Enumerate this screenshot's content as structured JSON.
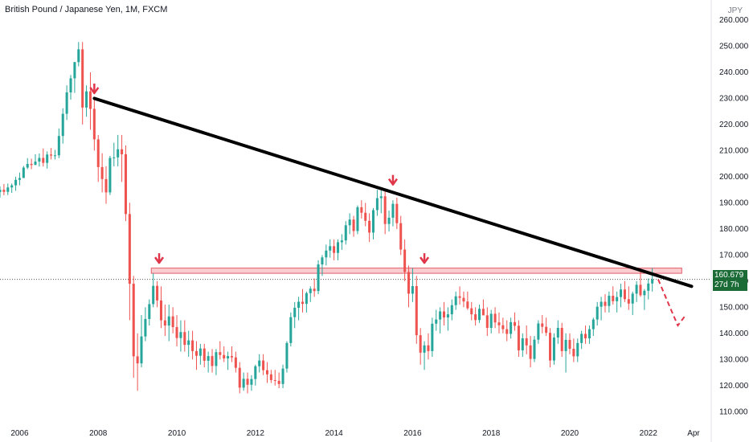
{
  "title": "British Pound / Japanese Yen, 1M, FXCM",
  "currency": "JPY",
  "last_price": "160.679",
  "countdown": "27d 7h",
  "colors": {
    "up": "#26a69a",
    "down": "#ef5350",
    "trend": "#000000",
    "zone": "#f4a3a8",
    "arrow": "#e0364a",
    "tag": "#1b6b36"
  },
  "chart_data": {
    "type": "candlestick",
    "x_ticks": [
      "2006",
      "2008",
      "2010",
      "2012",
      "2014",
      "2016",
      "2018",
      "2020",
      "2022",
      "Apr"
    ],
    "y_ticks": [
      "110.000",
      "120.000",
      "130.000",
      "140.000",
      "150.000",
      "160.000",
      "170.000",
      "180.000",
      "190.000",
      "200.000",
      "210.000",
      "220.000",
      "230.000",
      "240.000",
      "250.000",
      "260.000"
    ],
    "ylim": [
      107,
      264
    ],
    "xlim": [
      2005.5,
      2023.6
    ],
    "trendline": {
      "from": [
        2007.9,
        230
      ],
      "to": [
        2023.1,
        158
      ]
    },
    "resistance_zone": {
      "x_start": 2009.35,
      "x_end": 2022.85,
      "low": 163,
      "high": 165
    },
    "arrows": [
      [
        2007.9,
        232
      ],
      [
        2009.55,
        167
      ],
      [
        2015.5,
        197
      ],
      [
        2016.3,
        167
      ]
    ],
    "projection": [
      [
        2022.25,
        160.679
      ],
      [
        2022.55,
        150
      ],
      [
        2022.75,
        143
      ],
      [
        2022.95,
        147
      ]
    ],
    "ohlc": [
      [
        2005.5,
        194.1,
        196.3,
        192,
        195
      ],
      [
        2005.6,
        195,
        197.2,
        192.9,
        194.2
      ],
      [
        2005.7,
        194.2,
        197.4,
        193,
        195.9
      ],
      [
        2005.8,
        195.9,
        197.4,
        193.8,
        196.7
      ],
      [
        2005.9,
        196.7,
        200,
        194.6,
        198.8
      ],
      [
        2006.0,
        198.8,
        201.6,
        196.7,
        199.5
      ],
      [
        2006.1,
        199.5,
        204.1,
        199.5,
        203.5
      ],
      [
        2006.2,
        203.5,
        207.1,
        202.9,
        204.9
      ],
      [
        2006.3,
        204.9,
        206.9,
        202.9,
        204.5
      ],
      [
        2006.4,
        204.5,
        208.6,
        204.5,
        205.8
      ],
      [
        2006.5,
        205.8,
        208.9,
        203.9,
        207.2
      ],
      [
        2006.6,
        207.2,
        210.8,
        203.9,
        205.3
      ],
      [
        2006.7,
        205.3,
        209.7,
        203.1,
        208.5
      ],
      [
        2006.8,
        208.5,
        211,
        206.6,
        208.1
      ],
      [
        2006.9,
        208.1,
        210.3,
        206.6,
        208.2
      ],
      [
        2007.0,
        208.2,
        218.5,
        207.1,
        215.6
      ],
      [
        2007.1,
        215.6,
        226.2,
        212.7,
        224.1
      ],
      [
        2007.2,
        224.1,
        235,
        221.7,
        232.3
      ],
      [
        2007.3,
        232.3,
        239,
        229.5,
        237.7
      ],
      [
        2007.4,
        237.7,
        244,
        232.1,
        243.9
      ],
      [
        2007.5,
        243.9,
        251.6,
        242.3,
        248.8
      ],
      [
        2007.6,
        248.8,
        251.6,
        220,
        226.5
      ],
      [
        2007.7,
        226.5,
        235,
        223,
        232.7
      ],
      [
        2007.8,
        232.7,
        240,
        218,
        226
      ],
      [
        2007.9,
        226,
        230,
        210,
        214.3
      ],
      [
        2008.0,
        214.3,
        216,
        198,
        203.7
      ],
      [
        2008.1,
        203.7,
        209,
        194,
        199.1
      ],
      [
        2008.2,
        199.1,
        204,
        189.6,
        194
      ],
      [
        2008.3,
        194,
        208,
        193,
        207.2
      ],
      [
        2008.4,
        207.2,
        213,
        204,
        207.4
      ],
      [
        2008.5,
        207.4,
        216,
        204,
        210.5
      ],
      [
        2008.6,
        210.5,
        216,
        198,
        208.6
      ],
      [
        2008.7,
        208.6,
        212,
        183,
        185.7
      ],
      [
        2008.8,
        185.7,
        190,
        145,
        159
      ],
      [
        2008.9,
        159,
        162,
        123,
        131.2
      ],
      [
        2009.0,
        131.2,
        140,
        118,
        128.5
      ],
      [
        2009.1,
        128.5,
        147,
        127,
        138.8
      ],
      [
        2009.2,
        138.8,
        150,
        137,
        145.5
      ],
      [
        2009.3,
        145.5,
        153,
        143,
        151.2
      ],
      [
        2009.4,
        151.2,
        163,
        150,
        158.2
      ],
      [
        2009.5,
        158.2,
        160,
        150,
        152.6
      ],
      [
        2009.6,
        152.6,
        158,
        142,
        145
      ],
      [
        2009.7,
        145,
        151,
        139,
        143
      ],
      [
        2009.8,
        143,
        151,
        137,
        146.5
      ],
      [
        2009.9,
        146.5,
        150,
        140,
        142.4
      ],
      [
        2010.0,
        142.4,
        147,
        135,
        138.2
      ],
      [
        2010.1,
        138.2,
        145,
        133,
        140.5
      ],
      [
        2010.2,
        140.5,
        145,
        133,
        135.6
      ],
      [
        2010.3,
        135.6,
        141,
        131,
        137.3
      ],
      [
        2010.4,
        137.3,
        141,
        130,
        133.2
      ],
      [
        2010.5,
        133.2,
        137,
        126,
        131.4
      ],
      [
        2010.6,
        131.4,
        136,
        128,
        134.2
      ],
      [
        2010.7,
        134.2,
        136,
        127,
        129.5
      ],
      [
        2010.8,
        129.5,
        133,
        125,
        131.3
      ],
      [
        2010.9,
        131.3,
        134,
        125,
        127.5
      ],
      [
        2011.0,
        127.5,
        134,
        124,
        132.8
      ],
      [
        2011.1,
        132.8,
        137,
        130,
        131.7
      ],
      [
        2011.2,
        131.7,
        135,
        129,
        130.4
      ],
      [
        2011.3,
        130.4,
        133,
        126,
        131.3
      ],
      [
        2011.4,
        131.3,
        135,
        129,
        130.8
      ],
      [
        2011.5,
        130.8,
        133,
        125,
        126.8
      ],
      [
        2011.6,
        126.8,
        129,
        117,
        119.2
      ],
      [
        2011.7,
        119.2,
        125,
        118,
        122.6
      ],
      [
        2011.8,
        122.6,
        125,
        117,
        120.3
      ],
      [
        2011.9,
        120.3,
        124,
        118,
        122.5
      ],
      [
        2012.0,
        122.5,
        128,
        120,
        127.4
      ],
      [
        2012.1,
        127.4,
        132,
        125,
        129.6
      ],
      [
        2012.2,
        129.6,
        132,
        124,
        125.9
      ],
      [
        2012.3,
        125.9,
        129,
        121,
        124.3
      ],
      [
        2012.4,
        124.3,
        126,
        121,
        122.1
      ],
      [
        2012.5,
        122.1,
        126,
        120,
        121.8
      ],
      [
        2012.6,
        121.8,
        125,
        119,
        120.6
      ],
      [
        2012.7,
        120.6,
        128,
        119,
        126.5
      ],
      [
        2012.8,
        126.5,
        137,
        125,
        136.3
      ],
      [
        2012.9,
        136.3,
        148,
        135,
        146.2
      ],
      [
        2013.0,
        146.2,
        152,
        142,
        149.8
      ],
      [
        2013.1,
        149.8,
        154,
        145,
        152.1
      ],
      [
        2013.2,
        152.1,
        157,
        148,
        151.3
      ],
      [
        2013.3,
        151.3,
        156,
        148,
        155.4
      ],
      [
        2013.4,
        155.4,
        158,
        152,
        157.1
      ],
      [
        2013.5,
        157.1,
        161,
        154,
        156.2
      ],
      [
        2013.6,
        156.2,
        168,
        155,
        166.4
      ],
      [
        2013.7,
        166.4,
        170,
        162,
        169.1
      ],
      [
        2013.8,
        169.1,
        174,
        166,
        171.7
      ],
      [
        2013.9,
        171.7,
        176,
        169,
        173.4
      ],
      [
        2014.0,
        173.4,
        176,
        168,
        170.8
      ],
      [
        2014.1,
        170.8,
        176,
        168,
        174.9
      ],
      [
        2014.2,
        174.9,
        178,
        172,
        175.6
      ],
      [
        2014.3,
        175.6,
        183,
        174,
        181.4
      ],
      [
        2014.4,
        181.4,
        186,
        178,
        183.6
      ],
      [
        2014.5,
        183.6,
        185,
        177,
        179.2
      ],
      [
        2014.6,
        179.2,
        189,
        178,
        188.3
      ],
      [
        2014.7,
        188.3,
        191,
        184,
        186.2
      ],
      [
        2014.8,
        186.2,
        190,
        181,
        183.1
      ],
      [
        2014.9,
        183.1,
        186,
        175,
        178.6
      ],
      [
        2015.0,
        178.6,
        188,
        176,
        187.2
      ],
      [
        2015.1,
        187.2,
        195,
        185,
        191.8
      ],
      [
        2015.2,
        191.8,
        196,
        186,
        192.5
      ],
      [
        2015.3,
        192.5,
        195,
        178,
        181.9
      ],
      [
        2015.4,
        181.9,
        187,
        179,
        184.3
      ],
      [
        2015.5,
        184.3,
        191,
        181,
        189.6
      ],
      [
        2015.6,
        189.6,
        192,
        180,
        182.2
      ],
      [
        2015.7,
        182.2,
        185,
        170,
        172.1
      ],
      [
        2015.8,
        172.1,
        176,
        160,
        163.5
      ],
      [
        2015.9,
        163.5,
        166,
        150,
        155.2
      ],
      [
        2016.0,
        155.2,
        165,
        152,
        158.1
      ],
      [
        2016.1,
        158.1,
        162,
        136,
        139.3
      ],
      [
        2016.2,
        139.3,
        142,
        128,
        132.6
      ],
      [
        2016.3,
        132.6,
        137,
        126,
        135.4
      ],
      [
        2016.4,
        135.4,
        140,
        130,
        133.2
      ],
      [
        2016.5,
        133.2,
        146,
        131,
        143.7
      ],
      [
        2016.6,
        143.7,
        149,
        141,
        145.3
      ],
      [
        2016.7,
        145.3,
        150,
        140,
        148.4
      ],
      [
        2016.8,
        148.4,
        152,
        143,
        146.1
      ],
      [
        2016.9,
        146.1,
        150,
        141,
        147.3
      ],
      [
        2017.0,
        147.3,
        153,
        145,
        150.8
      ],
      [
        2017.1,
        150.8,
        156,
        149,
        154.2
      ],
      [
        2017.2,
        154.2,
        158,
        151,
        153.6
      ],
      [
        2017.3,
        153.6,
        156,
        150,
        152.2
      ],
      [
        2017.4,
        152.2,
        156,
        149,
        149.6
      ],
      [
        2017.5,
        149.6,
        152,
        145,
        147.3
      ],
      [
        2017.6,
        147.3,
        150,
        143,
        145.1
      ],
      [
        2017.7,
        145.1,
        151,
        144,
        149.4
      ],
      [
        2017.8,
        149.4,
        153,
        147,
        146.9
      ],
      [
        2017.9,
        146.9,
        150,
        139,
        142.1
      ],
      [
        2018.0,
        142.1,
        149,
        140,
        147.5
      ],
      [
        2018.1,
        147.5,
        150,
        142,
        144.2
      ],
      [
        2018.2,
        144.2,
        148,
        140,
        143.1
      ],
      [
        2018.3,
        143.1,
        146,
        140,
        141.6
      ],
      [
        2018.4,
        141.6,
        145,
        137,
        139.8
      ],
      [
        2018.5,
        139.8,
        146,
        138,
        144.3
      ],
      [
        2018.6,
        144.3,
        148,
        141,
        142.9
      ],
      [
        2018.7,
        142.9,
        145,
        131,
        133.5
      ],
      [
        2018.8,
        133.5,
        140,
        131,
        138.1
      ],
      [
        2018.9,
        138.1,
        143,
        132,
        135.4
      ],
      [
        2019.0,
        135.4,
        139,
        127,
        130.2
      ],
      [
        2019.1,
        130.2,
        139,
        129,
        137.6
      ],
      [
        2019.2,
        137.6,
        145,
        136,
        143.8
      ],
      [
        2019.3,
        143.8,
        147,
        140,
        142.5
      ],
      [
        2019.4,
        142.5,
        146,
        139,
        140.2
      ],
      [
        2019.5,
        140.2,
        142,
        127,
        129.6
      ],
      [
        2019.6,
        129.6,
        140,
        128,
        138.4
      ],
      [
        2019.7,
        138.4,
        145,
        136,
        142.1
      ],
      [
        2019.8,
        142.1,
        144,
        131,
        133.2
      ],
      [
        2019.9,
        133.2,
        140,
        125,
        137.5
      ],
      [
        2020.0,
        137.5,
        140,
        132,
        134.1
      ],
      [
        2020.1,
        134.1,
        138,
        129,
        131.2
      ],
      [
        2020.2,
        131.2,
        138,
        129,
        136.3
      ],
      [
        2020.3,
        136.3,
        141,
        134,
        139.8
      ],
      [
        2020.4,
        139.8,
        143,
        136,
        138.1
      ],
      [
        2020.5,
        138.1,
        143,
        136,
        141.6
      ],
      [
        2020.6,
        141.6,
        146,
        139,
        145.3
      ],
      [
        2020.7,
        145.3,
        152,
        143,
        150.2
      ],
      [
        2020.8,
        150.2,
        154,
        145,
        152.1
      ],
      [
        2020.9,
        152.1,
        155,
        148,
        150.5
      ],
      [
        2021.0,
        150.5,
        156,
        148,
        154.4
      ],
      [
        2021.1,
        154.4,
        158,
        151,
        152.3
      ],
      [
        2021.2,
        152.3,
        156,
        148,
        153.9
      ],
      [
        2021.3,
        153.9,
        159,
        150,
        156.8
      ],
      [
        2021.4,
        156.8,
        160,
        152,
        153.1
      ],
      [
        2021.5,
        153.1,
        158,
        149,
        151.4
      ],
      [
        2021.6,
        151.4,
        156,
        147,
        155.2
      ],
      [
        2021.7,
        155.2,
        160,
        152,
        158.6
      ],
      [
        2021.8,
        158.6,
        164,
        154,
        154.6
      ],
      [
        2021.9,
        154.6,
        157,
        149,
        156.3
      ],
      [
        2022.0,
        156.3,
        161,
        153,
        159.1
      ],
      [
        2022.1,
        159.1,
        165,
        156,
        160.679
      ]
    ]
  }
}
